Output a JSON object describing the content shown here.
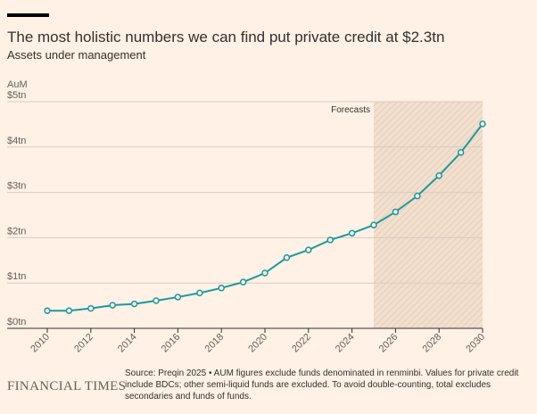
{
  "chart_data": {
    "type": "line",
    "title": "The most holistic numbers we can find put private credit at $2.3tn",
    "subtitle": "Assets under management",
    "y_label": "AuM",
    "x": [
      2010,
      2011,
      2012,
      2013,
      2014,
      2015,
      2016,
      2017,
      2018,
      2019,
      2020,
      2021,
      2022,
      2023,
      2024,
      2025,
      2026,
      2027,
      2028,
      2029,
      2030
    ],
    "values": [
      0.39,
      0.39,
      0.44,
      0.51,
      0.54,
      0.61,
      0.69,
      0.78,
      0.89,
      1.02,
      1.22,
      1.56,
      1.73,
      1.95,
      2.1,
      2.28,
      2.57,
      2.92,
      3.37,
      3.88,
      4.51
    ],
    "color": "#1a9aa0",
    "xlim": [
      2010,
      2030
    ],
    "xticks": [
      2010,
      2012,
      2014,
      2016,
      2018,
      2020,
      2022,
      2024,
      2026,
      2028,
      2030
    ],
    "ylim": [
      0,
      5
    ],
    "yticks": [
      {
        "value": 0,
        "label": "$0tn"
      },
      {
        "value": 1,
        "label": "$1tn"
      },
      {
        "value": 2,
        "label": "$2tn"
      },
      {
        "value": 3,
        "label": "$3tn"
      },
      {
        "value": 4,
        "label": "$4tn"
      },
      {
        "value": 5,
        "label": "$5tn"
      }
    ],
    "grid": true,
    "shaded_region": {
      "label": "Forecasts",
      "from": 2025,
      "to": 2030
    },
    "source": "Source: Preqin 2025 • AUM figures exclude funds denominated in renminbi. Values for private credit include BDCs; other semi-liquid funds are excluded. To avoid double-counting, total excludes secondaries and funds of funds.",
    "publisher": "FINANCIAL TIMES"
  }
}
